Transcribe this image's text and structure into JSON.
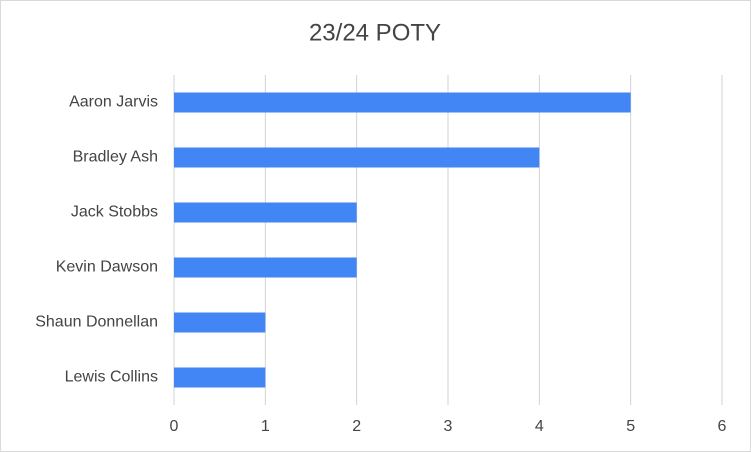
{
  "chart_data": {
    "type": "bar",
    "orientation": "horizontal",
    "title": "23/24 POTY",
    "categories": [
      "Aaron Jarvis",
      "Bradley Ash",
      "Jack Stobbs",
      "Kevin Dawson",
      "Shaun Donnellan",
      "Lewis Collins"
    ],
    "values": [
      5,
      4,
      2,
      2,
      1,
      1
    ],
    "color": "#4285f4",
    "xlim": [
      0,
      6
    ],
    "xticks": [
      0,
      1,
      2,
      3,
      4,
      5,
      6
    ],
    "grid": true
  }
}
